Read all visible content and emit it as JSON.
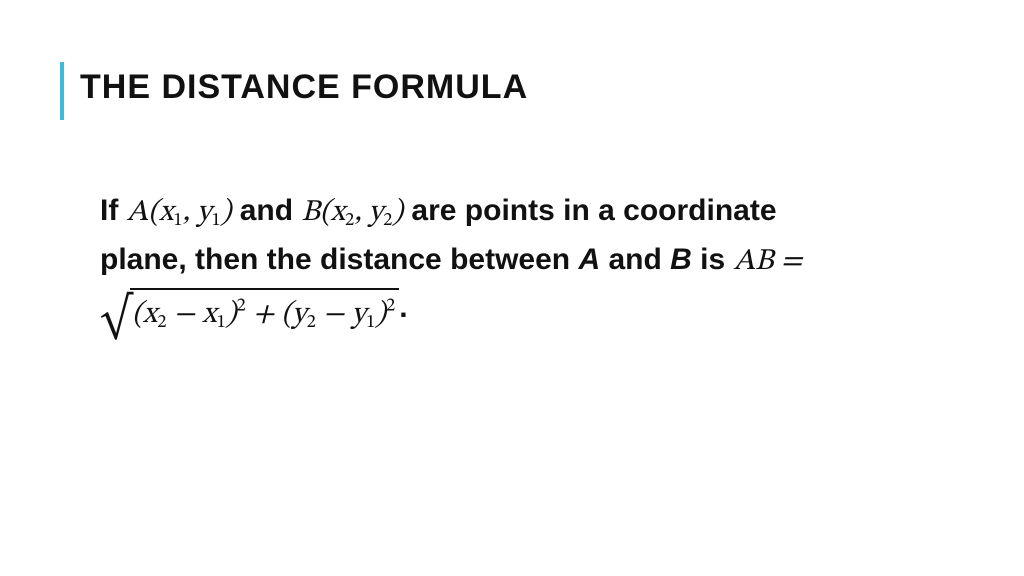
{
  "slide": {
    "title": "THE DISTANCE FORMULA",
    "accent_color": "#3fb8d9",
    "title_fontsize": 34,
    "body_fontsize": 30,
    "text_color": "#111111",
    "background_color": "#ffffff",
    "body": {
      "t_if": "If ",
      "A": "A",
      "lp1": "(",
      "x": "x",
      "s1": "1",
      "comma": ", ",
      "y": "y",
      "rp1": ")",
      "t_and_word": " and ",
      "B": "B",
      "lp2": "(",
      "s2": "2",
      "rp2": ")",
      "t_are_points": " are points in a coordinate plane, then the distance between ",
      "A_ital": "A",
      "t_and_word2": " and ",
      "B_ital": "B",
      "t_is": " is ",
      "AB": "AB",
      "eq": " = ",
      "minus": " − ",
      "plus": " + ",
      "sq": "2",
      "period": "."
    }
  }
}
